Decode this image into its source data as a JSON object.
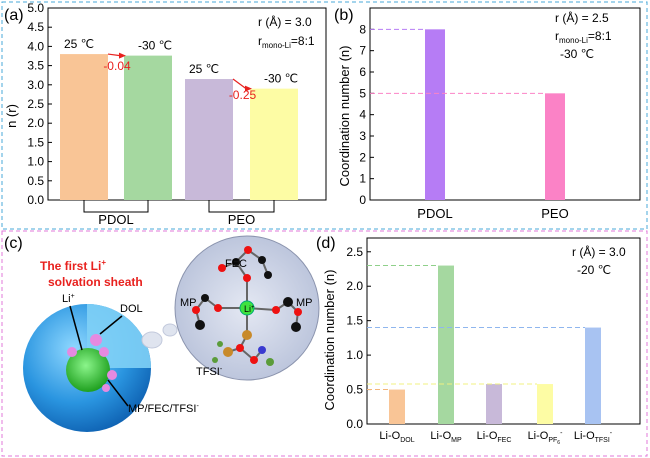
{
  "chart_data": [
    {
      "panel": "(a)",
      "type": "bar",
      "ylabel": "n (r)",
      "ylim": [
        0,
        5.0
      ],
      "yticks": [
        "0.0",
        "0.5",
        "1.0",
        "1.5",
        "2.0",
        "2.5",
        "3.0",
        "3.5",
        "4.0",
        "4.5",
        "5.0"
      ],
      "annotation_lines": [
        "r (Å) = 3.0",
        "r",
        "mono-Li",
        "=8:1"
      ],
      "groups": [
        {
          "label": "PDOL",
          "bars": [
            {
              "temp": "25 ℃",
              "value": 3.8,
              "color": "#f9c596"
            },
            {
              "temp": "-30 ℃",
              "value": 3.76,
              "color": "#a5d8a0"
            }
          ],
          "delta": "-0.04"
        },
        {
          "label": "PEO",
          "bars": [
            {
              "temp": "25 ℃",
              "value": 3.15,
              "color": "#c8b9d9"
            },
            {
              "temp": "-30 ℃",
              "value": 2.9,
              "color": "#fdfca4"
            }
          ],
          "delta": "-0.25"
        }
      ]
    },
    {
      "panel": "(b)",
      "type": "bar",
      "ylabel": "Coordination number (n)",
      "ylim": [
        0,
        9
      ],
      "yticks": [
        "0",
        "1",
        "2",
        "3",
        "4",
        "5",
        "6",
        "7",
        "8"
      ],
      "annotation_lines": [
        "r (Å) = 2.5",
        "r",
        "mono-Li",
        "=8:1",
        "-30 ℃"
      ],
      "categories": [
        "PDOL",
        "PEO"
      ],
      "values": [
        8.0,
        5.0
      ],
      "colors": [
        "#b67cf5",
        "#fb82c6"
      ]
    },
    {
      "panel": "(d)",
      "type": "bar",
      "ylabel": "Coordination number (n)",
      "ylim": [
        0,
        2.7
      ],
      "yticks": [
        "0.0",
        "0.5",
        "1.0",
        "1.5",
        "2.0",
        "2.5"
      ],
      "annotation_lines": [
        "r (Å) = 3.0",
        "-20 ℃"
      ],
      "categories": [
        {
          "main": "Li-O",
          "sub": "DOL"
        },
        {
          "main": "Li-O",
          "sub": "MP"
        },
        {
          "main": "Li-O",
          "sub": "FEC"
        },
        {
          "main": "Li-O",
          "sub": "PF",
          "subsub": "6",
          "sup": "-"
        },
        {
          "main": "Li-O",
          "sub": "TFSI",
          "sup": "-"
        }
      ],
      "values": [
        0.5,
        2.3,
        0.58,
        0.58,
        1.4
      ],
      "colors": [
        "#f9c596",
        "#a5d8a0",
        "#c8b9d9",
        "#fdfca4",
        "#a8c3f2"
      ]
    }
  ],
  "panel_c": {
    "label": "(c)",
    "title_line1": "The first Li",
    "title_sup": "+",
    "title_line2": "solvation sheath",
    "li_label": "Li",
    "li_sup": "+",
    "dol_label": "DOL",
    "mp_fec_label": "MP/FEC/TFSI",
    "mp_fec_sup": "-",
    "fec_label": "FEC",
    "mp_left_label": "MP",
    "mp_right_label": "MP",
    "tfsi_label": "TFSI",
    "tfsi_sup": "-",
    "center_label": "Li",
    "center_sup": "+",
    "title_color": "#e8211e"
  }
}
